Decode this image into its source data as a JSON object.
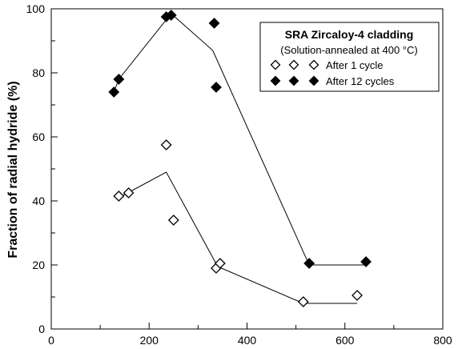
{
  "chart_data": {
    "type": "scatter",
    "title": "",
    "xlabel": "",
    "ylabel": "Fraction of radial hydride (%)",
    "xlim": [
      0,
      800
    ],
    "ylim": [
      0,
      100
    ],
    "x_ticks": [
      0,
      200,
      400,
      600,
      800
    ],
    "y_ticks": [
      0,
      20,
      40,
      60,
      80,
      100
    ],
    "grid": false,
    "legend": {
      "placement": "top-right",
      "title": "SRA Zircaloy-4 cladding",
      "subtitle": "(Solution-annealed at 400 °C)"
    },
    "series": [
      {
        "name": "After 1 cycle",
        "marker": "open-diamond",
        "points": [
          {
            "x": 138,
            "y": 41.5
          },
          {
            "x": 158,
            "y": 42.5
          },
          {
            "x": 235,
            "y": 57.5
          },
          {
            "x": 250,
            "y": 34.0
          },
          {
            "x": 337,
            "y": 19.0
          },
          {
            "x": 345,
            "y": 20.5
          },
          {
            "x": 515,
            "y": 8.5
          },
          {
            "x": 625,
            "y": 10.5
          }
        ],
        "trend": [
          {
            "x": 138,
            "y": 41.0
          },
          {
            "x": 235,
            "y": 49.0
          },
          {
            "x": 340,
            "y": 19.5
          },
          {
            "x": 515,
            "y": 8.0
          },
          {
            "x": 625,
            "y": 8.0
          }
        ]
      },
      {
        "name": "After 12 cycles",
        "marker": "filled-diamond",
        "points": [
          {
            "x": 128,
            "y": 74.0
          },
          {
            "x": 138,
            "y": 78.0
          },
          {
            "x": 235,
            "y": 97.5
          },
          {
            "x": 245,
            "y": 98.0
          },
          {
            "x": 333,
            "y": 95.5
          },
          {
            "x": 337,
            "y": 75.5
          },
          {
            "x": 527,
            "y": 20.5
          },
          {
            "x": 643,
            "y": 21.0
          }
        ],
        "trend": [
          {
            "x": 128,
            "y": 74.0
          },
          {
            "x": 138,
            "y": 78.0
          },
          {
            "x": 245,
            "y": 98.5
          },
          {
            "x": 330,
            "y": 87.0
          },
          {
            "x": 527,
            "y": 20.0
          },
          {
            "x": 643,
            "y": 20.0
          }
        ]
      }
    ]
  }
}
